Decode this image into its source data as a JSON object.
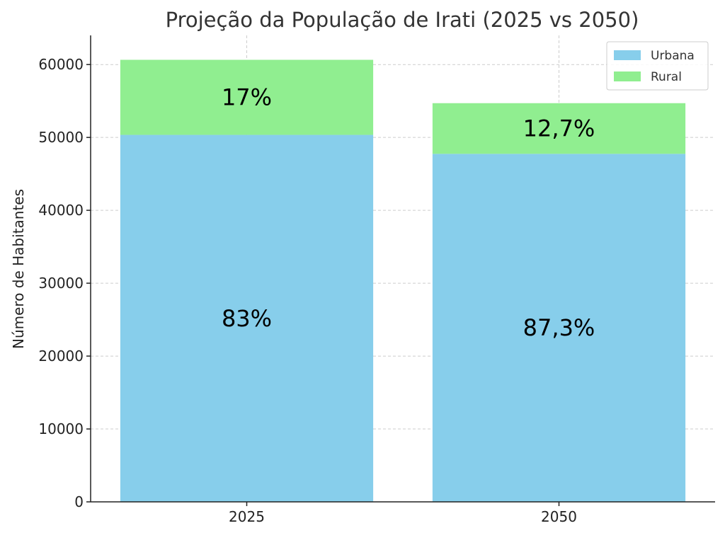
{
  "chart_data": {
    "type": "bar",
    "stacked": true,
    "title": "Projeção da População de Irati (2025 vs 2050)",
    "xlabel": "",
    "ylabel": "Número de Habitantes",
    "categories": [
      "2025",
      "2050"
    ],
    "series": [
      {
        "name": "Urbana",
        "color": "#87CEEB",
        "values": [
          50350,
          47750
        ],
        "labels": [
          "83%",
          "87,3%"
        ]
      },
      {
        "name": "Rural",
        "color": "#90EE90",
        "values": [
          10300,
          6950
        ],
        "labels": [
          "17%",
          "12,7%"
        ]
      }
    ],
    "ylim": [
      0,
      64000
    ],
    "yticks": [
      0,
      10000,
      20000,
      30000,
      40000,
      50000,
      60000
    ],
    "ytick_labels": [
      "0",
      "10000",
      "20000",
      "30000",
      "40000",
      "50000",
      "60000"
    ],
    "grid": true,
    "legend_position": "top-right"
  }
}
